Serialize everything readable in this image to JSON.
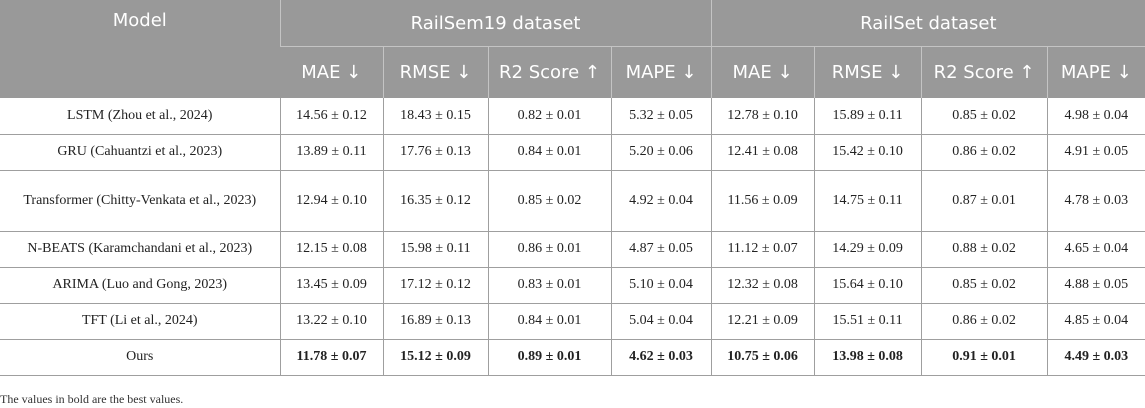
{
  "table": {
    "model_header": "Model",
    "dataset_headers": [
      "RailSem19 dataset",
      "RailSet dataset"
    ],
    "metric_headers": [
      "MAE ↓",
      "RMSE ↓",
      "R2 Score ↑",
      "MAPE ↓",
      "MAE ↓",
      "RMSE ↓",
      "R2 Score ↑",
      "MAPE ↓"
    ],
    "rows": [
      {
        "model": "LSTM (Zhou et al., 2024)",
        "values": [
          "14.56 ± 0.12",
          "18.43 ± 0.15",
          "0.82 ± 0.01",
          "5.32 ± 0.05",
          "12.78 ± 0.10",
          "15.89 ± 0.11",
          "0.85 ± 0.02",
          "4.98 ± 0.04"
        ]
      },
      {
        "model": "GRU (Cahuantzi et al., 2023)",
        "values": [
          "13.89 ± 0.11",
          "17.76 ± 0.13",
          "0.84 ± 0.01",
          "5.20 ± 0.06",
          "12.41 ± 0.08",
          "15.42 ± 0.10",
          "0.86 ± 0.02",
          "4.91 ± 0.05"
        ]
      },
      {
        "model": "Transformer (Chitty-Venkata et al., 2023)",
        "values": [
          "12.94 ± 0.10",
          "16.35 ± 0.12",
          "0.85 ± 0.02",
          "4.92 ± 0.04",
          "11.56 ± 0.09",
          "14.75 ± 0.11",
          "0.87 ± 0.01",
          "4.78 ± 0.03"
        ]
      },
      {
        "model": "N-BEATS (Karamchandani et al., 2023)",
        "values": [
          "12.15 ± 0.08",
          "15.98 ± 0.11",
          "0.86 ± 0.01",
          "4.87 ± 0.05",
          "11.12 ± 0.07",
          "14.29 ± 0.09",
          "0.88 ± 0.02",
          "4.65 ± 0.04"
        ]
      },
      {
        "model": "ARIMA (Luo and Gong, 2023)",
        "values": [
          "13.45 ± 0.09",
          "17.12 ± 0.12",
          "0.83 ± 0.01",
          "5.10 ± 0.04",
          "12.32 ± 0.08",
          "15.64 ± 0.10",
          "0.85 ± 0.02",
          "4.88 ± 0.05"
        ]
      },
      {
        "model": "TFT (Li et al., 2024)",
        "values": [
          "13.22 ± 0.10",
          "16.89 ± 0.13",
          "0.84 ± 0.01",
          "5.04 ± 0.04",
          "12.21 ± 0.09",
          "15.51 ± 0.11",
          "0.86 ± 0.02",
          "4.85 ± 0.04"
        ]
      },
      {
        "model": "Ours",
        "values": [
          "11.78 ± 0.07",
          "15.12 ± 0.09",
          "0.89 ± 0.01",
          "4.62 ± 0.03",
          "10.75 ± 0.06",
          "13.98 ± 0.08",
          "0.91 ± 0.01",
          "4.49 ± 0.03"
        ]
      }
    ]
  },
  "footnote": "The values in bold are the best values.",
  "colors": {
    "header_bg": "#999999",
    "header_text": "#ffffff",
    "rule": "#9f9f9f"
  }
}
